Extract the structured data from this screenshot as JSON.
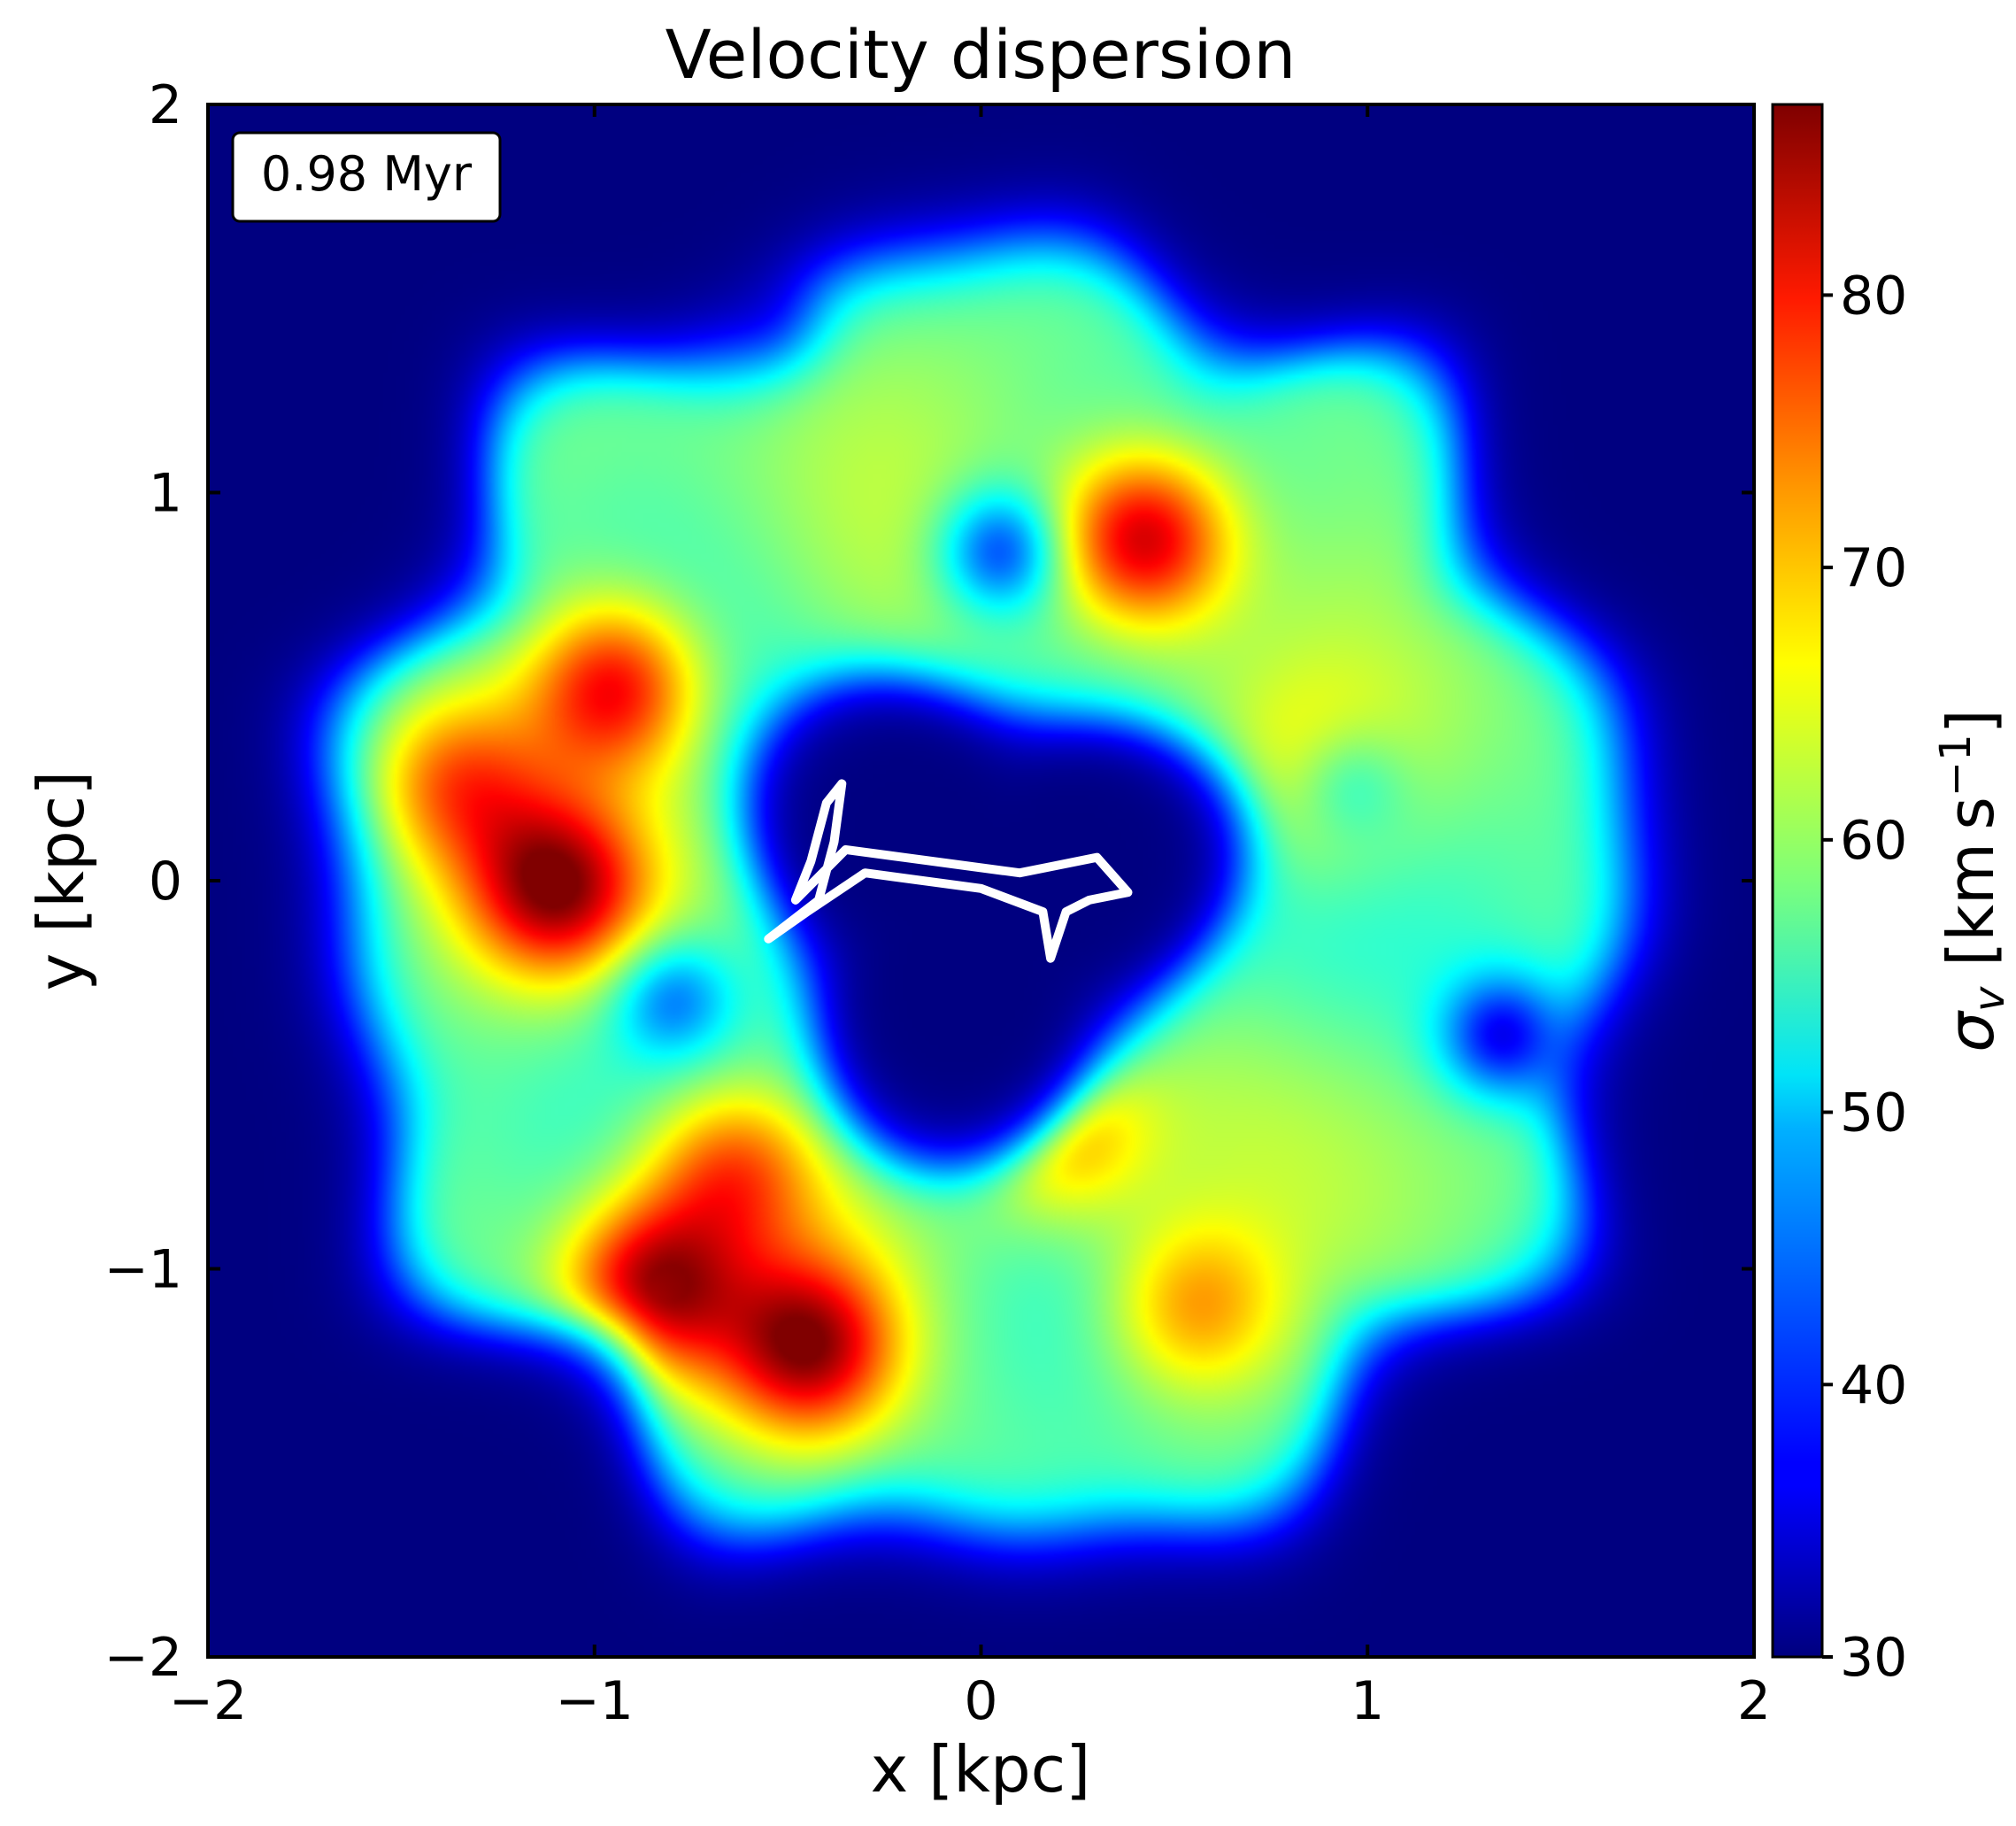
{
  "chart_data": {
    "type": "heatmap",
    "title": "Velocity dispersion",
    "xlabel": "x [kpc]",
    "ylabel": "y [kpc]",
    "xlim": [
      -2,
      2
    ],
    "ylim": [
      -2,
      2
    ],
    "xticks": [
      -2,
      -1,
      0,
      1,
      2
    ],
    "yticks": [
      -2,
      -1,
      0,
      1,
      2
    ],
    "xtick_labels": [
      "−2",
      "−1",
      "0",
      "1",
      "2"
    ],
    "ytick_labels": [
      "−2",
      "−1",
      "0",
      "1",
      "2"
    ],
    "time_label": "0.98 Myr",
    "colormap": "jet",
    "colorbar": {
      "label_base": "σ",
      "label_sub": "v",
      "label_unit": " [km s",
      "label_sup": "−1",
      "label_close": "]",
      "range": [
        30,
        87
      ],
      "ticks": [
        30,
        40,
        50,
        60,
        70,
        80
      ],
      "tick_labels": [
        "30",
        "40",
        "50",
        "60",
        "70",
        "80"
      ]
    },
    "background_value": 30,
    "ring": {
      "center": [
        0.0,
        -0.05
      ],
      "inner_radius": 0.6,
      "outer_radius": 1.65,
      "base_value": 58
    },
    "hotspots": [
      {
        "x": 0.42,
        "y": 0.88,
        "value": 86
      },
      {
        "x": -0.95,
        "y": 0.5,
        "value": 82
      },
      {
        "x": -1.1,
        "y": -0.02,
        "value": 84
      },
      {
        "x": -0.85,
        "y": -1.05,
        "value": 85
      },
      {
        "x": -0.45,
        "y": -1.2,
        "value": 84
      },
      {
        "x": -0.65,
        "y": -0.75,
        "value": 76
      },
      {
        "x": 0.55,
        "y": -1.1,
        "value": 72
      },
      {
        "x": 0.2,
        "y": -0.65,
        "value": 74
      },
      {
        "x": -1.35,
        "y": 0.25,
        "value": 74
      },
      {
        "x": 0.9,
        "y": 0.25,
        "value": 66
      }
    ],
    "coldspots": [
      {
        "x": -0.8,
        "y": -0.3,
        "value": 45
      },
      {
        "x": 0.95,
        "y": 0.25,
        "value": 47
      },
      {
        "x": 1.35,
        "y": -0.4,
        "value": 38
      },
      {
        "x": -0.55,
        "y": 1.45,
        "value": 45
      },
      {
        "x": 0.05,
        "y": 0.85,
        "value": 40
      }
    ],
    "overlay_contour": {
      "color": "#ffffff",
      "points": [
        [
          -0.55,
          -0.15
        ],
        [
          -0.42,
          -0.05
        ],
        [
          -0.38,
          0.1
        ],
        [
          -0.36,
          0.25
        ],
        [
          -0.4,
          0.2
        ],
        [
          -0.44,
          0.05
        ],
        [
          -0.48,
          -0.05
        ],
        [
          -0.35,
          0.08
        ],
        [
          -0.2,
          0.06
        ],
        [
          0.1,
          0.02
        ],
        [
          0.3,
          0.06
        ],
        [
          0.38,
          -0.03
        ],
        [
          0.28,
          -0.05
        ],
        [
          0.22,
          -0.08
        ],
        [
          0.18,
          -0.2
        ],
        [
          0.16,
          -0.08
        ],
        [
          0.0,
          -0.02
        ],
        [
          -0.3,
          0.02
        ],
        [
          -0.45,
          -0.08
        ],
        [
          -0.55,
          -0.15
        ]
      ]
    }
  }
}
